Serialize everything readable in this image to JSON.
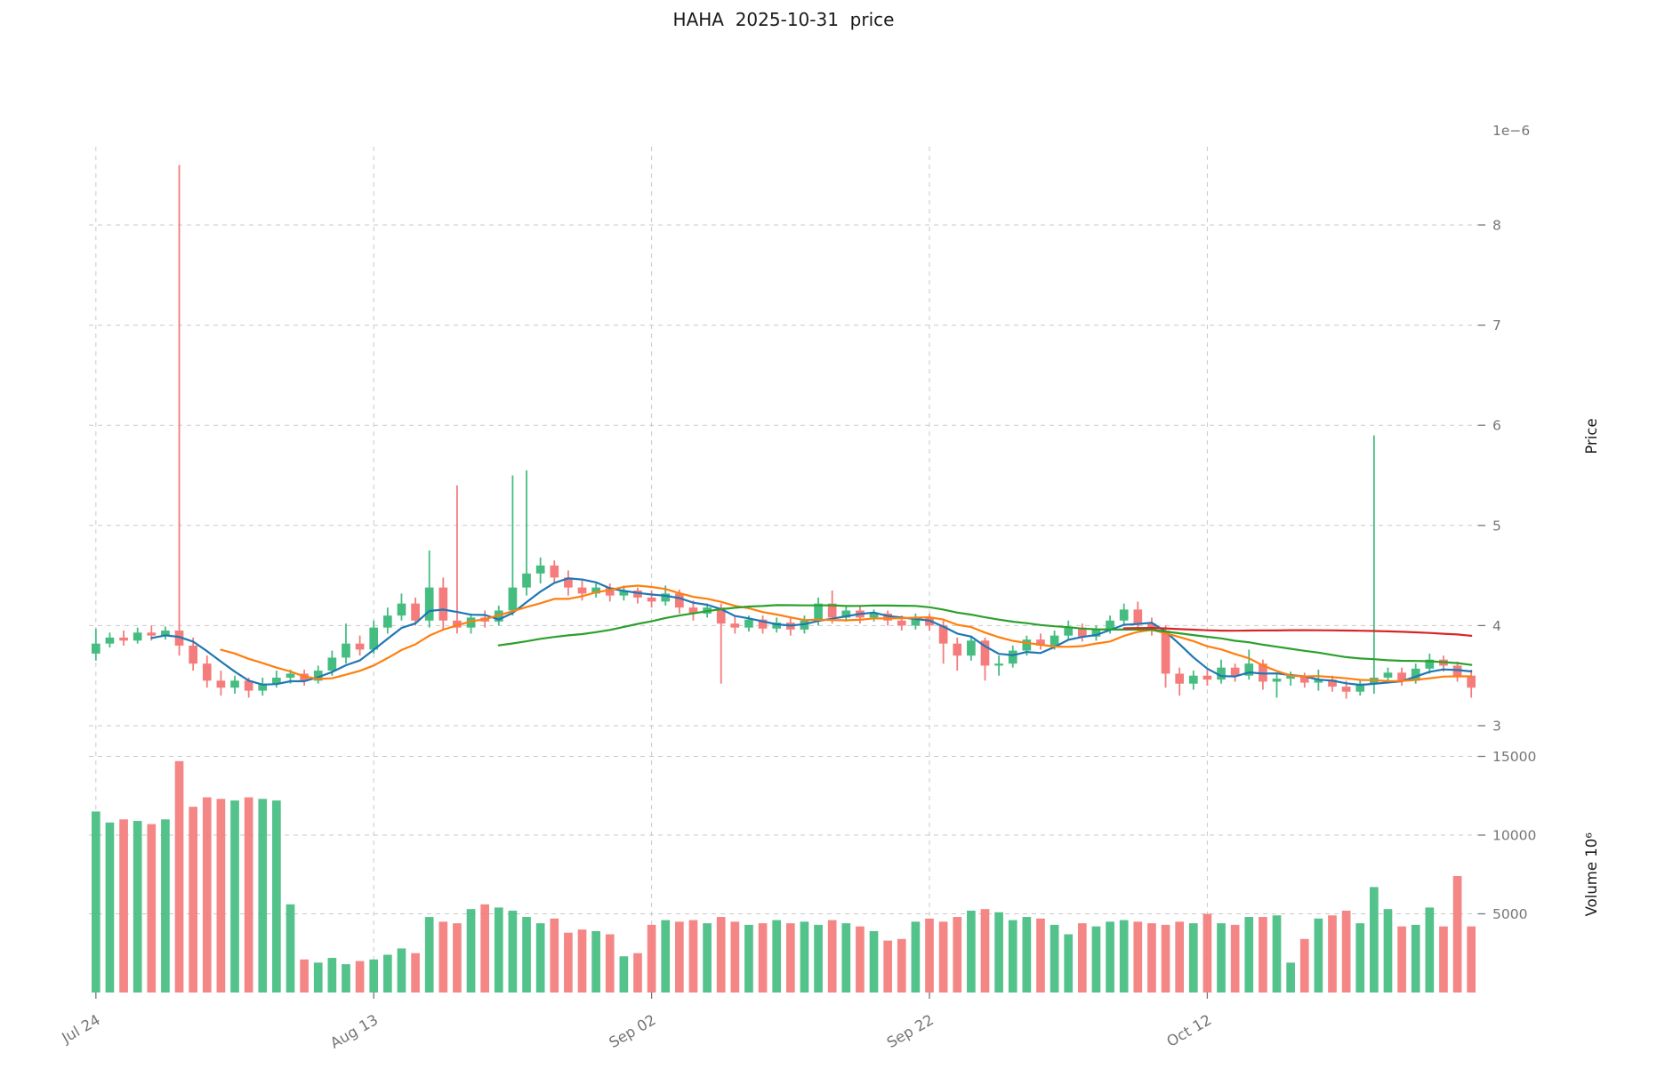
{
  "title": "HAHA  2025-10-31  price",
  "chart_data": {
    "type": "candlestick",
    "title": "HAHA  2025-10-31  price",
    "n_points": 100,
    "x_ticks": [
      {
        "index": 0,
        "label": "Jul 24"
      },
      {
        "index": 20,
        "label": "Aug 13"
      },
      {
        "index": 40,
        "label": "Sep 02"
      },
      {
        "index": 60,
        "label": "Sep 22"
      },
      {
        "index": 80,
        "label": "Oct 12"
      }
    ],
    "price_axis": {
      "label": "Price",
      "offset_label": "1e−6",
      "ticks": [
        3,
        4,
        5,
        6,
        7,
        8
      ],
      "ylim": [
        2.95,
        8.9
      ]
    },
    "volume_axis": {
      "label": "Volume  10⁶",
      "ticks": [
        5000,
        10000,
        15000
      ],
      "ylim": [
        0,
        15500
      ]
    },
    "legend": [],
    "ma_lines": [
      {
        "name": "MA5",
        "window": 5,
        "color": "#1f77b4"
      },
      {
        "name": "MA10",
        "window": 10,
        "color": "#ff7f0e"
      },
      {
        "name": "MA30",
        "window": 30,
        "color": "#2ca02c"
      },
      {
        "name": "MA75",
        "window": 75,
        "color": "#d62728"
      }
    ],
    "colors": {
      "up": "#45bd81",
      "down": "#f47c7c",
      "grid": "#c9c9c9",
      "tick_text": "#757575",
      "title_text": "#1a1a1a"
    },
    "grid": "dashed",
    "ohlc": [
      [
        3.72,
        3.97,
        3.65,
        3.82
      ],
      [
        3.82,
        3.93,
        3.78,
        3.88
      ],
      [
        3.88,
        3.95,
        3.8,
        3.85
      ],
      [
        3.85,
        3.98,
        3.82,
        3.93
      ],
      [
        3.93,
        4.0,
        3.85,
        3.9
      ],
      [
        3.9,
        3.99,
        3.86,
        3.95
      ],
      [
        3.95,
        8.6,
        3.7,
        3.8
      ],
      [
        3.8,
        3.88,
        3.55,
        3.62
      ],
      [
        3.62,
        3.7,
        3.38,
        3.45
      ],
      [
        3.45,
        3.55,
        3.3,
        3.38
      ],
      [
        3.38,
        3.5,
        3.32,
        3.45
      ],
      [
        3.45,
        3.48,
        3.28,
        3.35
      ],
      [
        3.35,
        3.48,
        3.3,
        3.42
      ],
      [
        3.42,
        3.55,
        3.38,
        3.48
      ],
      [
        3.48,
        3.56,
        3.42,
        3.52
      ],
      [
        3.52,
        3.56,
        3.4,
        3.45
      ],
      [
        3.45,
        3.6,
        3.42,
        3.55
      ],
      [
        3.55,
        3.75,
        3.5,
        3.68
      ],
      [
        3.68,
        4.02,
        3.62,
        3.82
      ],
      [
        3.82,
        3.9,
        3.7,
        3.76
      ],
      [
        3.76,
        4.05,
        3.72,
        3.98
      ],
      [
        3.98,
        4.18,
        3.92,
        4.1
      ],
      [
        4.1,
        4.32,
        4.05,
        4.22
      ],
      [
        4.22,
        4.28,
        4.0,
        4.05
      ],
      [
        4.05,
        4.75,
        3.98,
        4.38
      ],
      [
        4.38,
        4.48,
        3.95,
        4.05
      ],
      [
        4.05,
        5.4,
        3.92,
        3.98
      ],
      [
        3.98,
        4.12,
        3.92,
        4.08
      ],
      [
        4.08,
        4.15,
        3.98,
        4.04
      ],
      [
        4.04,
        4.2,
        4.0,
        4.15
      ],
      [
        4.15,
        5.5,
        4.1,
        4.38
      ],
      [
        4.38,
        5.55,
        4.3,
        4.52
      ],
      [
        4.52,
        4.68,
        4.42,
        4.6
      ],
      [
        4.6,
        4.65,
        4.42,
        4.48
      ],
      [
        4.48,
        4.55,
        4.3,
        4.38
      ],
      [
        4.38,
        4.45,
        4.25,
        4.32
      ],
      [
        4.32,
        4.42,
        4.28,
        4.38
      ],
      [
        4.38,
        4.42,
        4.24,
        4.3
      ],
      [
        4.3,
        4.4,
        4.25,
        4.35
      ],
      [
        4.35,
        4.38,
        4.22,
        4.28
      ],
      [
        4.28,
        4.35,
        4.18,
        4.24
      ],
      [
        4.24,
        4.4,
        4.2,
        4.32
      ],
      [
        4.32,
        4.36,
        4.12,
        4.18
      ],
      [
        4.18,
        4.25,
        4.05,
        4.12
      ],
      [
        4.12,
        4.22,
        4.08,
        4.18
      ],
      [
        4.18,
        4.22,
        3.42,
        4.02
      ],
      [
        4.02,
        4.1,
        3.92,
        3.98
      ],
      [
        3.98,
        4.1,
        3.94,
        4.06
      ],
      [
        4.06,
        4.1,
        3.92,
        3.97
      ],
      [
        3.97,
        4.08,
        3.93,
        4.03
      ],
      [
        4.03,
        4.08,
        3.9,
        3.96
      ],
      [
        3.96,
        4.1,
        3.92,
        4.05
      ],
      [
        4.05,
        4.28,
        4.0,
        4.22
      ],
      [
        4.22,
        4.35,
        4.02,
        4.08
      ],
      [
        4.08,
        4.2,
        4.04,
        4.15
      ],
      [
        4.15,
        4.2,
        4.02,
        4.08
      ],
      [
        4.08,
        4.16,
        4.04,
        4.12
      ],
      [
        4.12,
        4.15,
        4.0,
        4.05
      ],
      [
        4.05,
        4.1,
        3.95,
        4.0
      ],
      [
        4.0,
        4.12,
        3.96,
        4.08
      ],
      [
        4.08,
        4.12,
        3.95,
        4.0
      ],
      [
        4.0,
        4.05,
        3.62,
        3.82
      ],
      [
        3.82,
        3.88,
        3.55,
        3.7
      ],
      [
        3.7,
        3.9,
        3.65,
        3.85
      ],
      [
        3.85,
        3.88,
        3.45,
        3.6
      ],
      [
        3.6,
        3.7,
        3.5,
        3.62
      ],
      [
        3.62,
        3.8,
        3.58,
        3.75
      ],
      [
        3.75,
        3.9,
        3.7,
        3.86
      ],
      [
        3.86,
        3.92,
        3.76,
        3.8
      ],
      [
        3.8,
        3.95,
        3.76,
        3.9
      ],
      [
        3.9,
        4.05,
        3.86,
        3.98
      ],
      [
        3.98,
        4.02,
        3.84,
        3.89
      ],
      [
        3.89,
        4.0,
        3.85,
        3.96
      ],
      [
        3.96,
        4.1,
        3.92,
        4.05
      ],
      [
        4.05,
        4.22,
        4.0,
        4.16
      ],
      [
        4.16,
        4.24,
        3.96,
        4.02
      ],
      [
        4.02,
        4.08,
        3.9,
        3.95
      ],
      [
        3.95,
        4.0,
        3.38,
        3.52
      ],
      [
        3.52,
        3.58,
        3.3,
        3.42
      ],
      [
        3.42,
        3.55,
        3.36,
        3.5
      ],
      [
        3.5,
        3.56,
        3.4,
        3.46
      ],
      [
        3.46,
        3.66,
        3.42,
        3.58
      ],
      [
        3.58,
        3.62,
        3.44,
        3.5
      ],
      [
        3.5,
        3.76,
        3.46,
        3.62
      ],
      [
        3.62,
        3.66,
        3.36,
        3.44
      ],
      [
        3.44,
        3.52,
        3.28,
        3.47
      ],
      [
        3.47,
        3.54,
        3.4,
        3.5
      ],
      [
        3.5,
        3.53,
        3.38,
        3.43
      ],
      [
        3.43,
        3.56,
        3.35,
        3.46
      ],
      [
        3.46,
        3.5,
        3.34,
        3.39
      ],
      [
        3.39,
        3.45,
        3.27,
        3.34
      ],
      [
        3.34,
        3.46,
        3.3,
        3.42
      ],
      [
        3.42,
        5.9,
        3.32,
        3.48
      ],
      [
        3.48,
        3.58,
        3.42,
        3.53
      ],
      [
        3.53,
        3.58,
        3.4,
        3.45
      ],
      [
        3.45,
        3.62,
        3.42,
        3.57
      ],
      [
        3.57,
        3.72,
        3.52,
        3.66
      ],
      [
        3.66,
        3.7,
        3.54,
        3.6
      ],
      [
        3.6,
        3.64,
        3.44,
        3.5
      ],
      [
        3.5,
        3.56,
        3.28,
        3.38
      ]
    ],
    "volume": [
      11500,
      10800,
      11000,
      10900,
      10700,
      11000,
      14700,
      11800,
      12400,
      12300,
      12200,
      12400,
      12300,
      12200,
      5600,
      2100,
      1900,
      2200,
      1800,
      2000,
      2100,
      2400,
      2800,
      2500,
      4800,
      4500,
      4400,
      5300,
      5600,
      5400,
      5200,
      4800,
      4400,
      4700,
      3800,
      4000,
      3900,
      3700,
      2300,
      2500,
      4300,
      4600,
      4500,
      4600,
      4400,
      4800,
      4500,
      4300,
      4400,
      4600,
      4400,
      4500,
      4300,
      4600,
      4400,
      4200,
      3900,
      3300,
      3400,
      4500,
      4700,
      4500,
      4800,
      5200,
      5300,
      5100,
      4600,
      4800,
      4700,
      4300,
      3700,
      4400,
      4200,
      4500,
      4600,
      4500,
      4400,
      4300,
      4500,
      4400,
      5000,
      4400,
      4300,
      4800,
      4800,
      4900,
      1900,
      3400,
      4700,
      4900,
      5200,
      4400,
      6700,
      5300,
      4200,
      4300,
      5400,
      4200,
      7400,
      4200
    ]
  }
}
